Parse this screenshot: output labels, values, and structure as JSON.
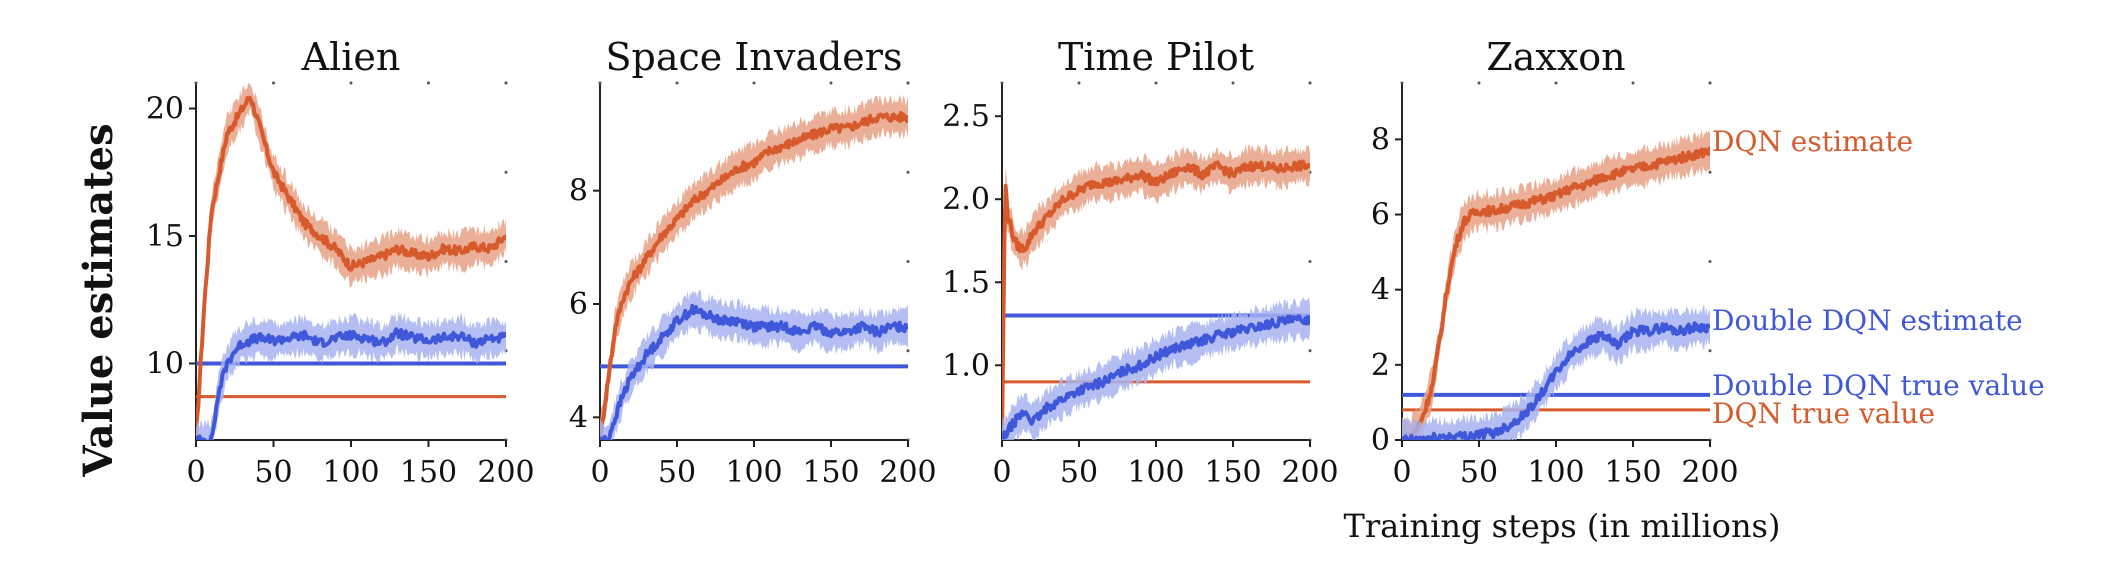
{
  "figure": {
    "ylabel": "Value estimates",
    "xlabel": "Training steps (in millions)",
    "colors": {
      "dqn": "#d65a2c",
      "dqn_band": "#e8a084",
      "ddqn": "#3f57d9",
      "ddqn_band": "#a8b3f0"
    },
    "legend": {
      "dqn_estimate": "DQN estimate",
      "ddqn_estimate": "Double DQN estimate",
      "ddqn_true": "Double DQN true value",
      "dqn_true": "DQN true value"
    }
  },
  "chart_data": [
    {
      "type": "line",
      "title": "Alien",
      "xlim": [
        0,
        200
      ],
      "ylim": [
        7,
        21
      ],
      "xticks": [
        0,
        50,
        100,
        150,
        200
      ],
      "xtick_labels": [
        "0",
        "50",
        "100",
        "150",
        "200"
      ],
      "yticks": [
        10,
        15,
        20
      ],
      "ytick_labels": [
        "10",
        "15",
        "20"
      ],
      "series": [
        {
          "name": "DQN estimate",
          "x": [
            0,
            5,
            10,
            15,
            20,
            25,
            30,
            35,
            40,
            50,
            60,
            70,
            80,
            90,
            100,
            110,
            120,
            130,
            140,
            150,
            160,
            170,
            180,
            190,
            200
          ],
          "y": [
            7,
            12,
            16,
            17.5,
            19,
            19.5,
            20,
            20.5,
            19.5,
            17.5,
            16.5,
            15.5,
            15,
            14.5,
            13.8,
            14,
            14.2,
            14.5,
            14.3,
            14.2,
            14.5,
            14.4,
            14.6,
            14.5,
            15
          ]
        },
        {
          "name": "Double DQN estimate",
          "x": [
            0,
            5,
            10,
            15,
            20,
            25,
            30,
            40,
            50,
            60,
            70,
            80,
            90,
            100,
            110,
            120,
            130,
            140,
            150,
            160,
            170,
            180,
            190,
            200
          ],
          "y": [
            7,
            7,
            7,
            9,
            10,
            10.5,
            10.8,
            11,
            10.9,
            11,
            11.1,
            10.8,
            11,
            11.1,
            11,
            10.8,
            11.2,
            11,
            10.9,
            11,
            11.1,
            10.8,
            11,
            11
          ]
        }
      ],
      "true_values": {
        "Double DQN true value": 10,
        "DQN true value": 8.7
      }
    },
    {
      "type": "line",
      "title": "Space Invaders",
      "xlim": [
        0,
        200
      ],
      "ylim": [
        3.6,
        9.9
      ],
      "xticks": [
        0,
        50,
        100,
        150,
        200
      ],
      "xtick_labels": [
        "0",
        "50",
        "100",
        "150",
        "200"
      ],
      "yticks": [
        4,
        6,
        8
      ],
      "ytick_labels": [
        "4",
        "6",
        "8"
      ],
      "series": [
        {
          "name": "DQN estimate",
          "x": [
            0,
            5,
            10,
            15,
            20,
            30,
            40,
            50,
            60,
            70,
            80,
            90,
            100,
            110,
            120,
            130,
            140,
            150,
            160,
            170,
            180,
            190,
            200
          ],
          "y": [
            3.6,
            4.6,
            5.6,
            6.1,
            6.4,
            6.8,
            7.2,
            7.5,
            7.8,
            8,
            8.2,
            8.4,
            8.5,
            8.7,
            8.8,
            8.9,
            9,
            9.1,
            9.1,
            9.2,
            9.3,
            9.3,
            9.3
          ]
        },
        {
          "name": "Double DQN estimate",
          "x": [
            0,
            5,
            10,
            15,
            20,
            30,
            40,
            50,
            60,
            70,
            80,
            90,
            100,
            110,
            120,
            130,
            140,
            150,
            160,
            170,
            180,
            190,
            200
          ],
          "y": [
            3.6,
            3.6,
            4,
            4.4,
            4.7,
            5.1,
            5.4,
            5.7,
            5.9,
            5.8,
            5.7,
            5.7,
            5.6,
            5.6,
            5.6,
            5.5,
            5.6,
            5.5,
            5.5,
            5.6,
            5.5,
            5.6,
            5.6
          ]
        }
      ],
      "true_values": {
        "Double DQN true value": 4.9,
        "DQN true value": 4.9
      }
    },
    {
      "type": "line",
      "title": "Time Pilot",
      "xlim": [
        0,
        200
      ],
      "ylim": [
        0.55,
        2.7
      ],
      "xticks": [
        0,
        50,
        100,
        150,
        200
      ],
      "xtick_labels": [
        "0",
        "50",
        "100",
        "150",
        "200"
      ],
      "yticks": [
        1.0,
        1.5,
        2.0,
        2.5
      ],
      "ytick_labels": [
        "1.0",
        "1.5",
        "2.0",
        "2.5"
      ],
      "series": [
        {
          "name": "DQN estimate",
          "x": [
            0,
            2,
            4,
            8,
            12,
            16,
            20,
            30,
            40,
            50,
            60,
            70,
            80,
            90,
            100,
            110,
            120,
            130,
            140,
            150,
            160,
            170,
            180,
            190,
            200
          ],
          "y": [
            0.55,
            2.1,
            1.9,
            1.75,
            1.7,
            1.72,
            1.8,
            1.9,
            2,
            2.05,
            2.1,
            2.1,
            2.12,
            2.15,
            2.1,
            2.15,
            2.2,
            2.15,
            2.2,
            2.15,
            2.2,
            2.2,
            2.18,
            2.2,
            2.2
          ]
        },
        {
          "name": "Double DQN estimate",
          "x": [
            0,
            5,
            10,
            15,
            20,
            25,
            30,
            40,
            50,
            60,
            70,
            80,
            90,
            100,
            110,
            120,
            130,
            140,
            150,
            160,
            170,
            180,
            190,
            200
          ],
          "y": [
            0.55,
            0.62,
            0.68,
            0.72,
            0.66,
            0.7,
            0.75,
            0.8,
            0.85,
            0.88,
            0.92,
            0.97,
            1.0,
            1.05,
            1.1,
            1.12,
            1.15,
            1.18,
            1.2,
            1.22,
            1.24,
            1.26,
            1.27,
            1.28
          ]
        }
      ],
      "true_values": {
        "Double DQN true value": 1.3,
        "DQN true value": 0.9
      }
    },
    {
      "type": "line",
      "title": "Zaxxon",
      "xlim": [
        0,
        200
      ],
      "ylim": [
        0,
        9.5
      ],
      "xticks": [
        0,
        50,
        100,
        150,
        200
      ],
      "xtick_labels": [
        "0",
        "50",
        "100",
        "150",
        "200"
      ],
      "yticks": [
        0,
        2,
        4,
        6,
        8
      ],
      "ytick_labels": [
        "0",
        "2",
        "4",
        "6",
        "8"
      ],
      "series": [
        {
          "name": "DQN estimate",
          "x": [
            0,
            5,
            10,
            15,
            20,
            25,
            30,
            35,
            40,
            45,
            50,
            60,
            70,
            80,
            90,
            100,
            110,
            120,
            130,
            140,
            150,
            160,
            170,
            180,
            190,
            200
          ],
          "y": [
            0,
            0.1,
            0.3,
            0.8,
            1.5,
            2.8,
            4.2,
            5.2,
            5.8,
            6,
            6.1,
            6.1,
            6.2,
            6.3,
            6.4,
            6.5,
            6.7,
            6.8,
            7,
            7.1,
            7.2,
            7.3,
            7.4,
            7.5,
            7.6,
            7.7
          ]
        },
        {
          "name": "Double DQN estimate",
          "x": [
            0,
            10,
            20,
            30,
            40,
            50,
            60,
            70,
            80,
            90,
            100,
            110,
            120,
            130,
            140,
            150,
            160,
            170,
            180,
            190,
            200
          ],
          "y": [
            0,
            0,
            0.05,
            0.1,
            0.1,
            0.15,
            0.2,
            0.4,
            0.7,
            1.2,
            1.8,
            2.3,
            2.6,
            2.8,
            2.5,
            2.9,
            2.9,
            3,
            2.9,
            3,
            3
          ]
        }
      ],
      "true_values": {
        "Double DQN true value": 1.2,
        "DQN true value": 0.8
      }
    }
  ]
}
